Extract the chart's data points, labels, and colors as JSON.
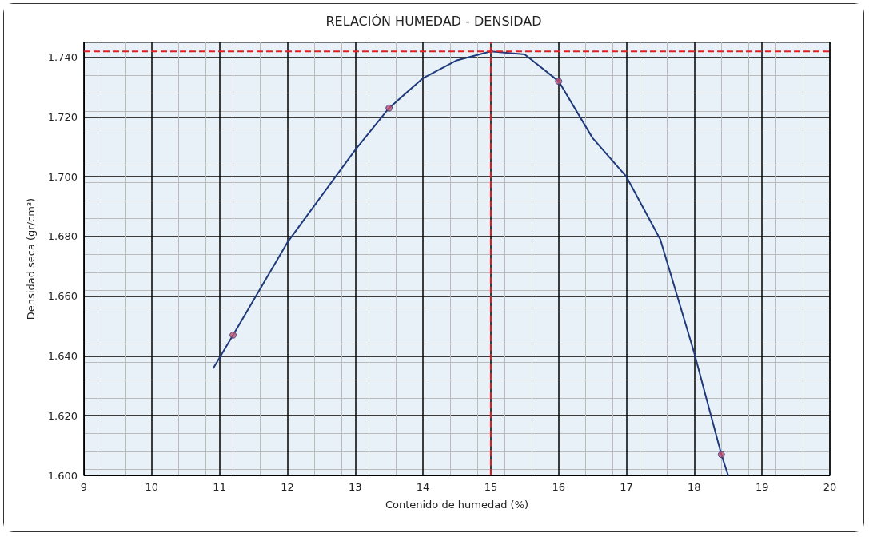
{
  "chart_data": {
    "type": "scatter",
    "title": "RELACIÓN HUMEDAD - DENSIDAD",
    "xlabel": "Contenido de humedad (%)",
    "ylabel": "Densidad seca (gr/cm³)",
    "xlim": [
      9,
      20
    ],
    "xticks": [
      9,
      10,
      11,
      12,
      13,
      14,
      15,
      16,
      17,
      18,
      19,
      20
    ],
    "ylim": [
      1.6,
      1.745
    ],
    "yticks": [
      {
        "value": 1.6,
        "label": "1.600"
      },
      {
        "value": 1.62,
        "label": "1.620"
      },
      {
        "value": 1.64,
        "label": "1.640"
      },
      {
        "value": 1.66,
        "label": "1.660"
      },
      {
        "value": 1.68,
        "label": "1.680"
      },
      {
        "value": 1.7,
        "label": "1.700"
      },
      {
        "value": 1.72,
        "label": "1.720"
      },
      {
        "value": 1.74,
        "label": "1.740"
      }
    ],
    "grid": true,
    "series": [
      {
        "type": "line",
        "color": "#1f3a7a",
        "marker": "none",
        "line_style": "solid",
        "x": [
          10.91,
          11.2,
          12,
          13,
          13.5,
          14,
          14.5,
          15,
          15.5,
          16,
          16.5,
          17,
          17.5,
          18,
          18.4,
          18.5
        ],
        "values": [
          1.636,
          1.647,
          1.678,
          1.709,
          1.723,
          1.733,
          1.739,
          1.742,
          1.741,
          1.732,
          1.713,
          1.7,
          1.679,
          1.641,
          1.607,
          1.6
        ]
      },
      {
        "color": "#c0506f",
        "marker": "circle",
        "x": [
          11.2,
          13.5,
          16.0,
          18.4
        ],
        "values": [
          1.647,
          1.723,
          1.732,
          1.607
        ]
      }
    ],
    "ref_lines": [
      {
        "axis": "y",
        "value": 1.742,
        "color": "#e02020",
        "line_style": "dashed"
      },
      {
        "axis": "x",
        "value": 15,
        "color": "#e02020",
        "line_style": "dashed"
      }
    ]
  }
}
